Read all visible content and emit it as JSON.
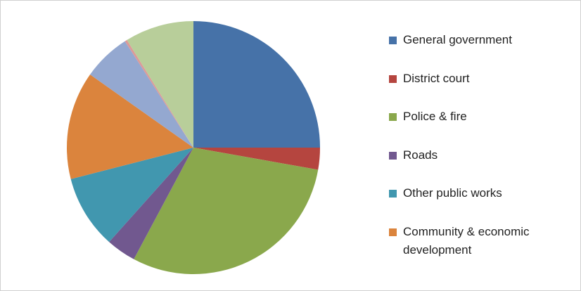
{
  "chart_data": {
    "type": "pie",
    "categories": [
      "General government",
      "District court",
      "Police & fire",
      "Roads",
      "Other public works",
      "Community & economic development",
      null,
      null,
      null
    ],
    "values": [
      25,
      2.8,
      30,
      3.8,
      9.4,
      13.8,
      6.1,
      0.3,
      8.8
    ],
    "colors": [
      "#4672a8",
      "#b5453f",
      "#8aa84c",
      "#71588f",
      "#4197af",
      "#db843d",
      "#94a8d0",
      "#dc9a98",
      "#b8ce9a"
    ],
    "legend": "right"
  }
}
